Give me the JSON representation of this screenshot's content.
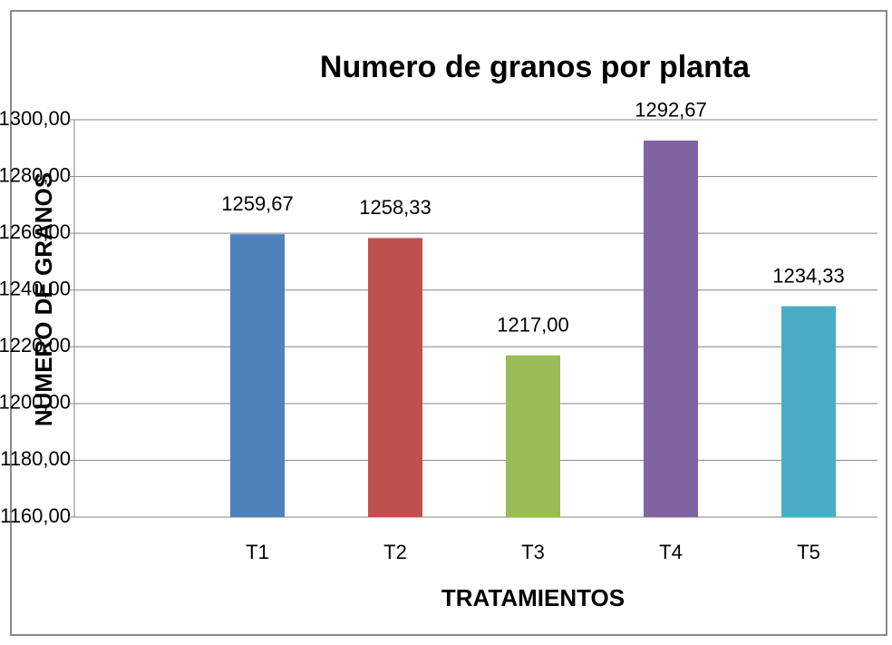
{
  "chart_data": {
    "type": "bar",
    "title": "Numero de granos por planta",
    "x_label": "TRATAMIENTOS",
    "y_label": "NUMERO DE GRANOS",
    "categories": [
      "T1",
      "T2",
      "T3",
      "T4",
      "T5"
    ],
    "values": [
      1259.67,
      1258.33,
      1217.0,
      1292.67,
      1234.33
    ],
    "value_labels": [
      "1259,67",
      "1258,33",
      "1217,00",
      "1292,67",
      "1234,33"
    ],
    "colors": [
      "#4f81bd",
      "#c0504d",
      "#9bbb59",
      "#8064a2",
      "#4bacc6"
    ],
    "ylim": [
      1160,
      1300
    ],
    "yticks": [
      {
        "value": 1160,
        "label": "1160,00"
      },
      {
        "value": 1180,
        "label": "1180,00"
      },
      {
        "value": 1200,
        "label": "1200,00"
      },
      {
        "value": 1220,
        "label": "1220,00"
      },
      {
        "value": 1240,
        "label": "1240,00"
      },
      {
        "value": 1260,
        "label": "1260,00"
      },
      {
        "value": 1280,
        "label": "1280,00"
      },
      {
        "value": 1300,
        "label": "1300,00"
      }
    ],
    "grid": true
  }
}
